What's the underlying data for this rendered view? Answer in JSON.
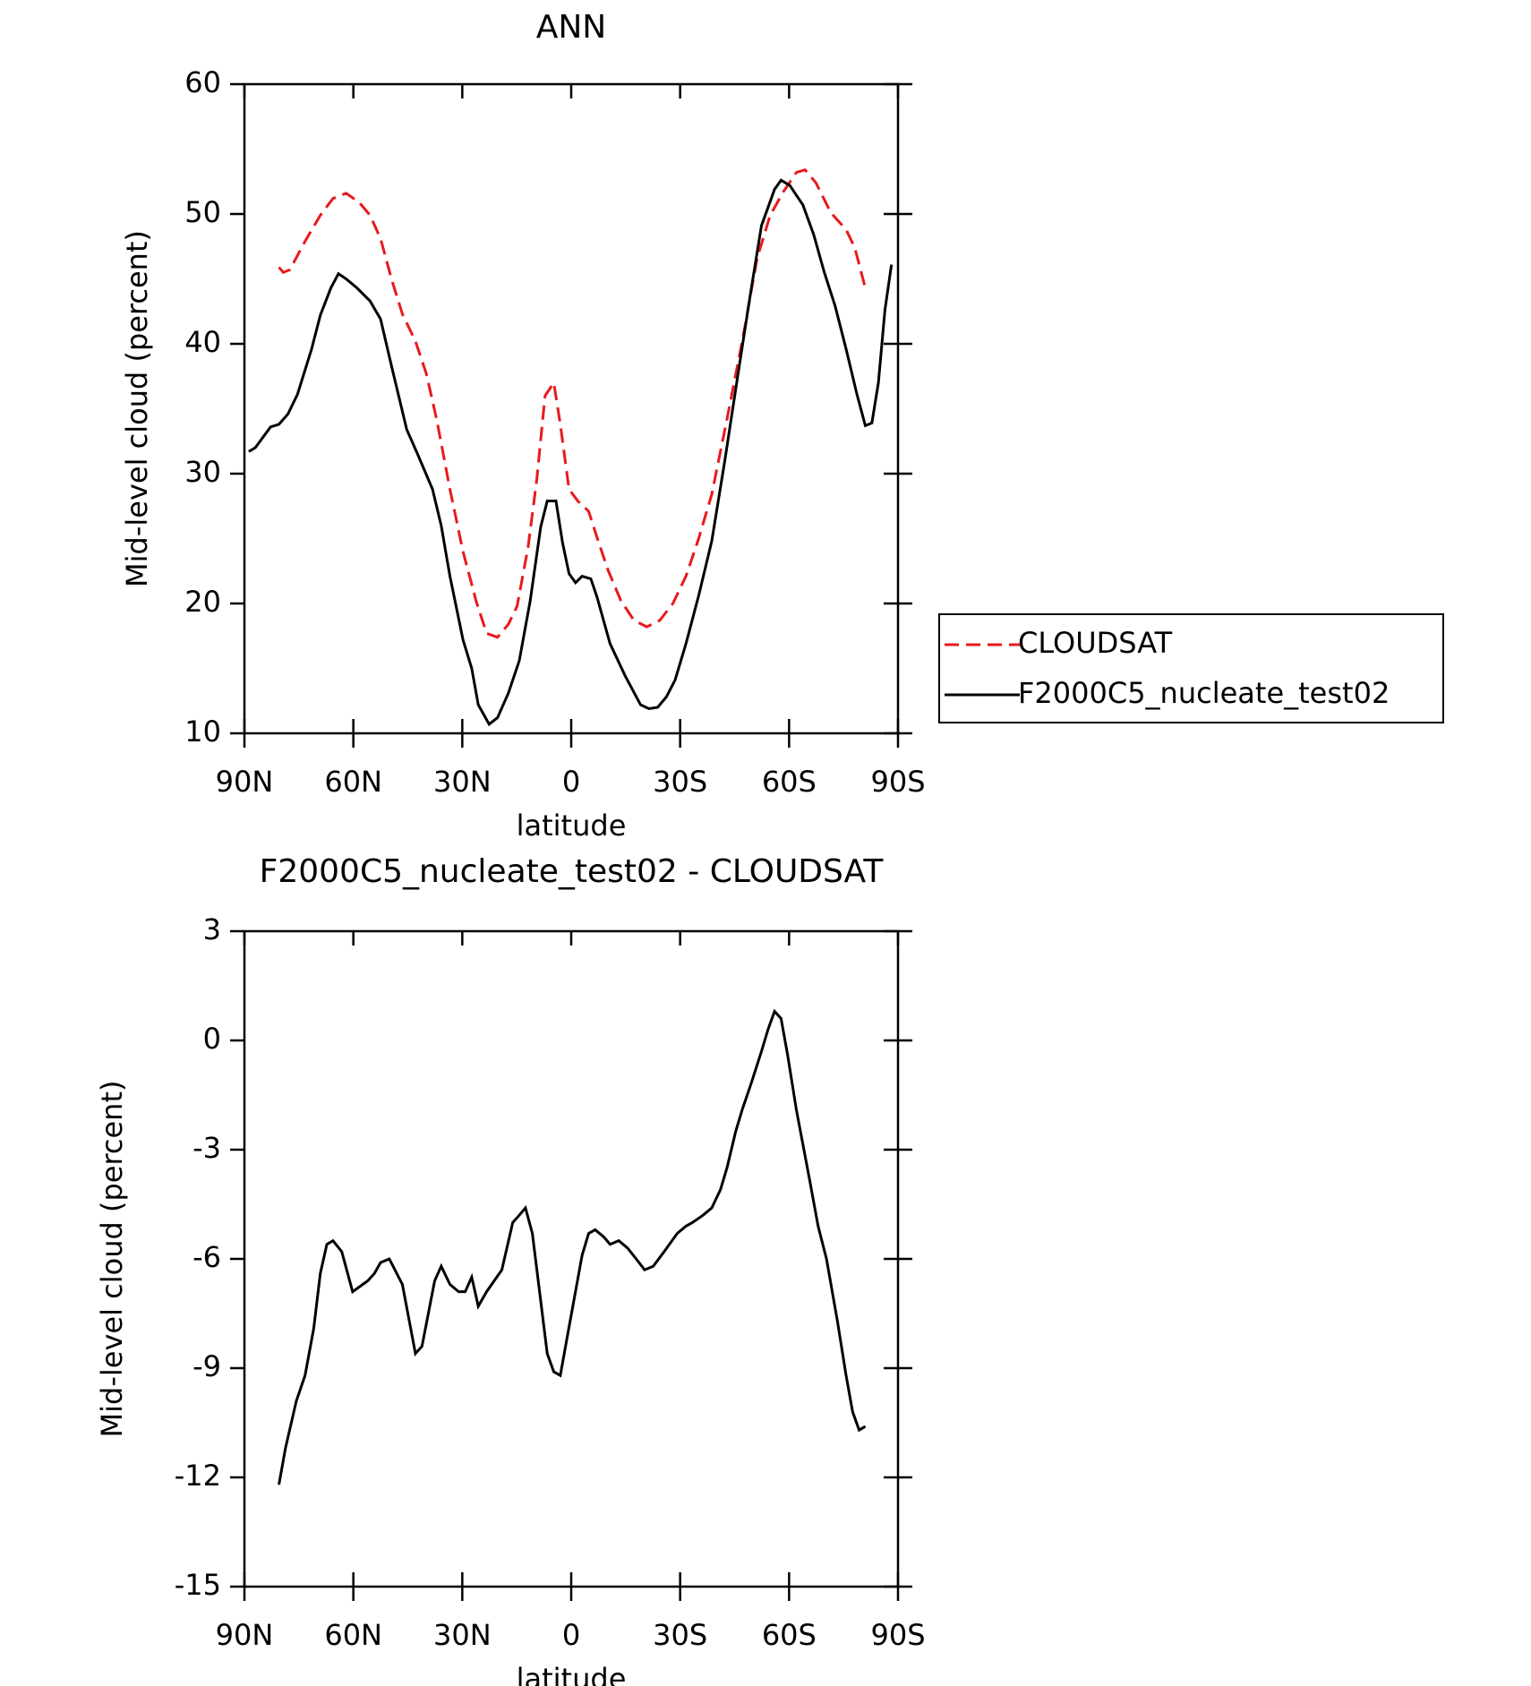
{
  "chart_data": [
    {
      "type": "line",
      "title": "ANN",
      "xlabel": "latitude",
      "ylabel": "Mid-level cloud (percent)",
      "xlim": [
        90,
        -90
      ],
      "xticks": [
        {
          "value": 90,
          "label": "90N"
        },
        {
          "value": 60,
          "label": "60N"
        },
        {
          "value": 30,
          "label": "30N"
        },
        0,
        {
          "value": -30,
          "label": "30S"
        },
        {
          "value": -60,
          "label": "60S"
        },
        {
          "value": -90,
          "label": "90S"
        }
      ],
      "ylim": [
        10,
        60
      ],
      "yticks": [
        10,
        20,
        30,
        40,
        50,
        60
      ],
      "legend": "right",
      "series": [
        {
          "name": "CLOUDSAT",
          "color": "#e8191c",
          "dashed": true,
          "x": [
            80.5,
            79.3,
            77.5,
            73.3,
            69.1,
            65.6,
            62,
            58.4,
            55.4,
            52.5,
            49.5,
            46.5,
            42.9,
            39.9,
            37.0,
            33.4,
            29.8,
            26.2,
            23.3,
            20.3,
            17.3,
            14.9,
            11.9,
            9.5,
            7.2,
            4.8,
            3.0,
            0.6,
            -1.8,
            -4.8,
            -7.1,
            -10.1,
            -13.7,
            -17.3,
            -20.8,
            -24.4,
            -28.0,
            -31.6,
            -35.1,
            -38.7,
            -42.9,
            -47.1,
            -51.2,
            -54.8,
            -58.4,
            -62.0,
            -64.4,
            -67.4,
            -71.5,
            -75.7,
            -78.1,
            -81.0
          ],
          "values": [
            45.9,
            45.5,
            45.7,
            47.9,
            49.9,
            51.2,
            51.6,
            50.9,
            49.9,
            48.1,
            45.0,
            42.3,
            40.2,
            37.7,
            34.1,
            28.8,
            24.0,
            20.2,
            17.7,
            17.4,
            18.4,
            19.8,
            24.3,
            29.5,
            36.0,
            37.0,
            33.8,
            28.8,
            27.9,
            27.1,
            25.1,
            22.6,
            20.2,
            18.7,
            18.2,
            18.7,
            20.0,
            22.1,
            25.0,
            28.4,
            34.2,
            40.2,
            46.6,
            49.9,
            51.7,
            53.2,
            53.4,
            52.4,
            50.1,
            48.8,
            47.4,
            44.3
          ]
        },
        {
          "name": "F2000C5_nucleate_test02",
          "color": "#000000",
          "dashed": false,
          "x": [
            88.8,
            87,
            82.8,
            80.5,
            78,
            75.4,
            71.5,
            69.1,
            66.2,
            64.1,
            62,
            59,
            55.4,
            52.5,
            49.5,
            45.3,
            42.3,
            38.2,
            35.8,
            33.4,
            29.8,
            27.4,
            25.6,
            22.6,
            20.3,
            17.3,
            14.3,
            11.3,
            8.4,
            6.6,
            4.2,
            2.4,
            0.6,
            -1.2,
            -3.0,
            -5.4,
            -7.1,
            -10.7,
            -14.9,
            -19.1,
            -21.4,
            -23.8,
            -26.2,
            -28.6,
            -31.6,
            -35.1,
            -38.7,
            -42.3,
            -45.9,
            -49.5,
            -52.4,
            -56.0,
            -57.8,
            -60.2,
            -63.8,
            -66.8,
            -69.7,
            -72.7,
            -75.7,
            -78.7,
            -81.0,
            -82.8,
            -84.6,
            -86.4,
            -88.2
          ],
          "values": [
            31.7,
            32.0,
            33.6,
            33.8,
            34.6,
            36.1,
            39.6,
            42.2,
            44.3,
            45.4,
            45.0,
            44.3,
            43.3,
            41.9,
            38.3,
            33.4,
            31.5,
            28.8,
            26.0,
            22.1,
            17.2,
            15.0,
            12.2,
            10.7,
            11.2,
            13.1,
            15.6,
            20.2,
            25.9,
            27.9,
            27.9,
            24.7,
            22.3,
            21.6,
            22.1,
            21.9,
            20.5,
            16.9,
            14.4,
            12.2,
            11.9,
            12.0,
            12.8,
            14.1,
            16.9,
            20.6,
            24.8,
            31.0,
            37.6,
            44.1,
            49.1,
            51.9,
            52.6,
            52.2,
            50.7,
            48.4,
            45.5,
            42.9,
            39.6,
            36.1,
            33.7,
            33.9,
            37.0,
            42.6,
            46.1
          ]
        }
      ]
    },
    {
      "type": "line",
      "title": "F2000C5_nucleate_test02 - CLOUDSAT",
      "xlabel": "latitude",
      "ylabel": "Mid-level cloud (percent)",
      "xlim": [
        90,
        -90
      ],
      "xticks": [
        {
          "value": 90,
          "label": "90N"
        },
        {
          "value": 60,
          "label": "60N"
        },
        {
          "value": 30,
          "label": "30N"
        },
        0,
        {
          "value": -30,
          "label": "30S"
        },
        {
          "value": -60,
          "label": "60S"
        },
        {
          "value": -90,
          "label": "90S"
        }
      ],
      "ylim": [
        -15,
        3
      ],
      "yticks": [
        -15,
        -12,
        -9,
        -6,
        -3,
        0,
        3
      ],
      "series": [
        {
          "color": "#000000",
          "dashed": false,
          "x": [
            80.5,
            78.7,
            75.7,
            73.3,
            70.9,
            69.1,
            67.3,
            65.6,
            63.2,
            60.2,
            56.0,
            54.2,
            52.5,
            50.1,
            46.5,
            42.9,
            41.1,
            37.6,
            35.8,
            33.4,
            31.0,
            29.2,
            27.4,
            25.6,
            23.3,
            19.1,
            16.1,
            14.3,
            12.6,
            10.7,
            6.6,
            4.8,
            3.0,
            1.2,
            -3.0,
            -4.8,
            -6.6,
            -9.0,
            -10.7,
            -13.1,
            -15.5,
            -17.9,
            -20.2,
            -22.6,
            -25.6,
            -29.2,
            -31.6,
            -33.4,
            -36.3,
            -38.7,
            -41.1,
            -42.9,
            -45.3,
            -47.1,
            -49.5,
            -52.4,
            -54.2,
            -56.0,
            -57.8,
            -59.6,
            -62.0,
            -65.6,
            -68.0,
            -70.3,
            -73.3,
            -75.7,
            -77.5,
            -79.3,
            -81.0
          ],
          "values": [
            -12.2,
            -11.2,
            -9.9,
            -9.2,
            -7.9,
            -6.4,
            -5.6,
            -5.5,
            -5.8,
            -6.9,
            -6.6,
            -6.4,
            -6.1,
            -6.0,
            -6.7,
            -8.6,
            -8.4,
            -6.6,
            -6.2,
            -6.7,
            -6.9,
            -6.9,
            -6.5,
            -7.3,
            -6.9,
            -6.3,
            -5.0,
            -4.8,
            -4.6,
            -5.3,
            -8.6,
            -9.1,
            -9.2,
            -8.2,
            -5.9,
            -5.3,
            -5.2,
            -5.4,
            -5.6,
            -5.5,
            -5.7,
            -6.0,
            -6.3,
            -6.2,
            -5.8,
            -5.3,
            -5.1,
            -5.0,
            -4.8,
            -4.6,
            -4.1,
            -3.5,
            -2.5,
            -1.9,
            -1.2,
            -0.3,
            0.3,
            0.8,
            0.6,
            -0.4,
            -1.9,
            -3.8,
            -5.1,
            -6.0,
            -7.7,
            -9.2,
            -10.2,
            -10.7,
            -10.6
          ]
        }
      ]
    }
  ]
}
